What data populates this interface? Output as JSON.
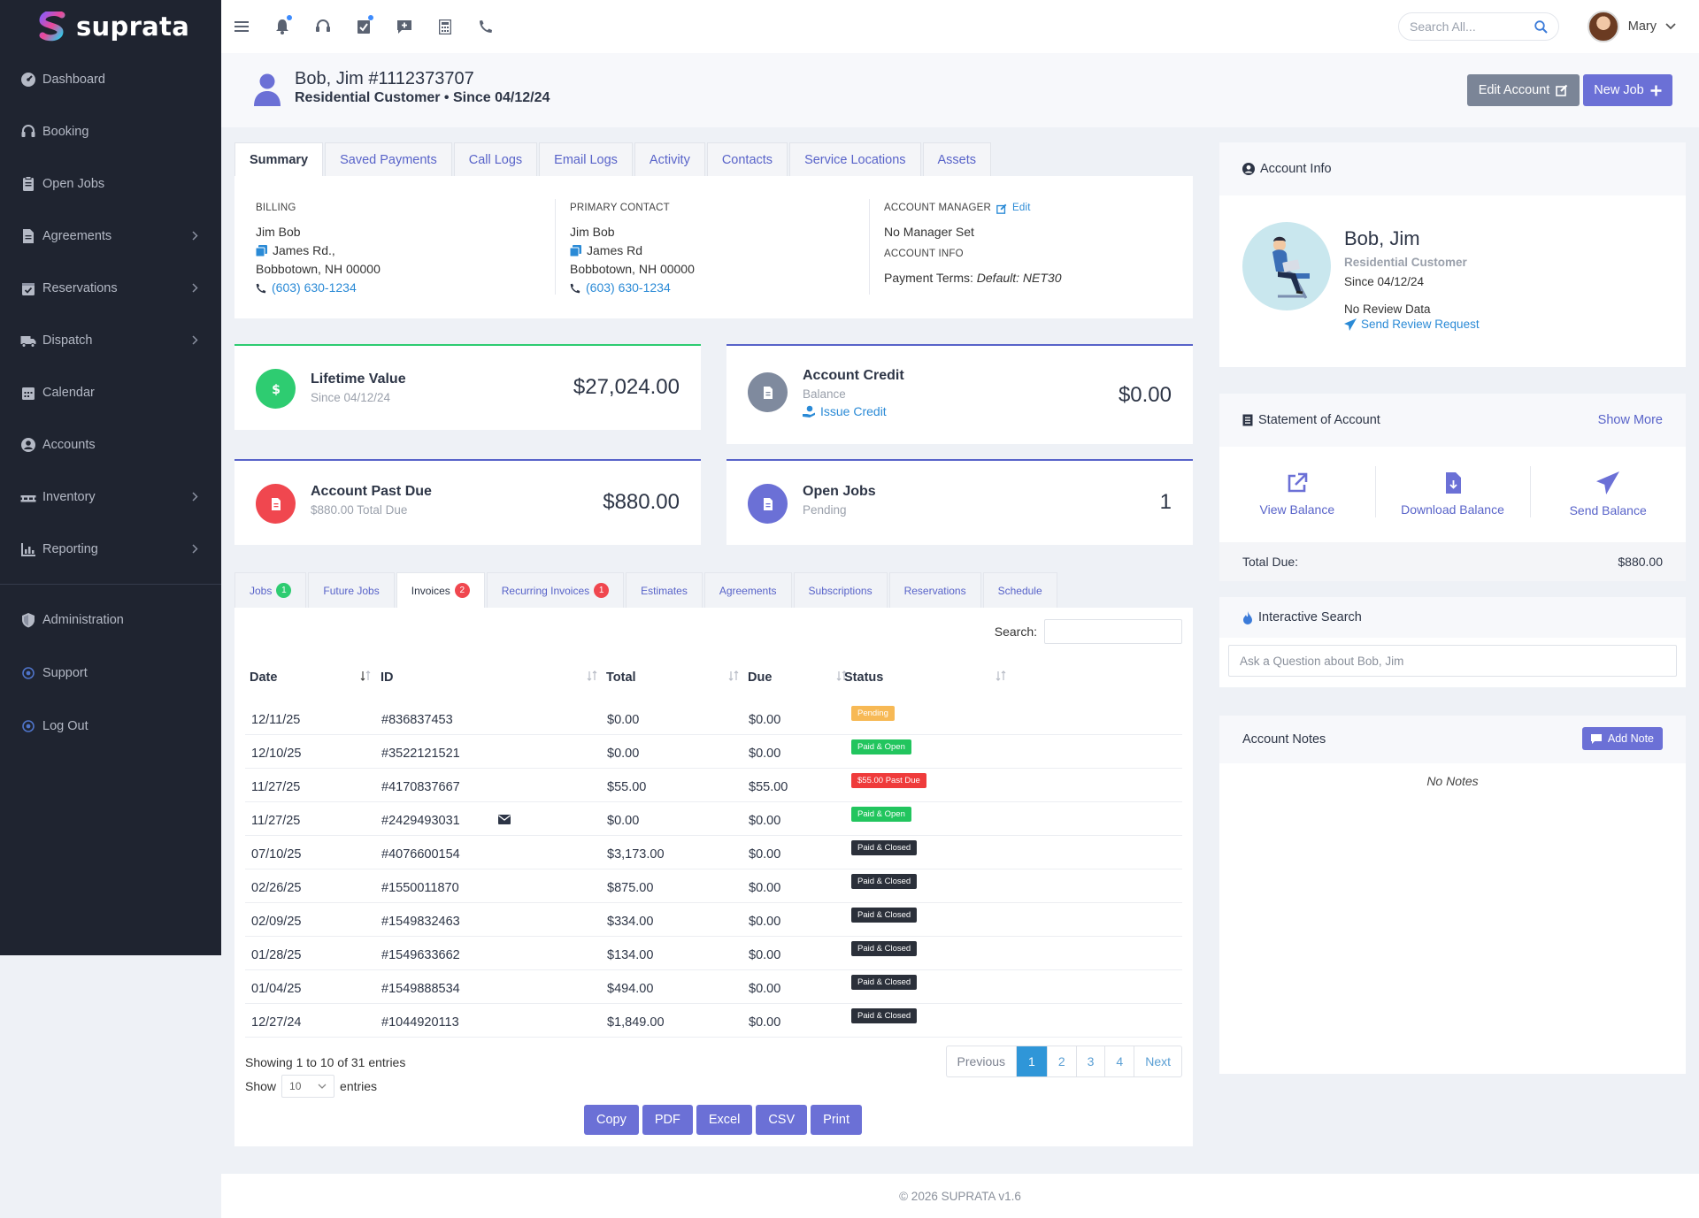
{
  "brand": {
    "name": "suprata"
  },
  "sidebar": {
    "items": [
      {
        "label": "Dashboard",
        "icon": "dashboard-gauge-icon",
        "has_chevron": false
      },
      {
        "label": "Booking",
        "icon": "headset-icon",
        "has_chevron": false
      },
      {
        "label": "Open Jobs",
        "icon": "clipboard-icon",
        "has_chevron": false
      },
      {
        "label": "Agreements",
        "icon": "file-contract-icon",
        "has_chevron": true
      },
      {
        "label": "Reservations",
        "icon": "calendar-check-icon",
        "has_chevron": true
      },
      {
        "label": "Dispatch",
        "icon": "truck-icon",
        "has_chevron": true
      },
      {
        "label": "Calendar",
        "icon": "calendar-icon",
        "has_chevron": false
      },
      {
        "label": "Accounts",
        "icon": "user-circle-icon",
        "has_chevron": false
      },
      {
        "label": "Inventory",
        "icon": "pallet-icon",
        "has_chevron": true
      },
      {
        "label": "Reporting",
        "icon": "chart-icon",
        "has_chevron": true
      }
    ],
    "bottom_items": [
      {
        "label": "Administration",
        "icon": "shield-icon"
      },
      {
        "label": "Support",
        "icon": "support-dot-icon"
      },
      {
        "label": "Log Out",
        "icon": "logout-dot-icon"
      }
    ]
  },
  "topbar": {
    "icons": [
      "menu-icon",
      "bell-icon",
      "headset-icon",
      "tasks-icon",
      "message-plus-icon",
      "calculator-icon",
      "phone-icon"
    ],
    "search_placeholder": "Search All...",
    "user_name": "Mary"
  },
  "header": {
    "title": "Bob, Jim #1112373707",
    "subtitle": "Residential Customer • Since 04/12/24",
    "edit_label": "Edit Account",
    "new_job_label": "New Job"
  },
  "main_tabs": [
    "Summary",
    "Saved Payments",
    "Call Logs",
    "Email Logs",
    "Activity",
    "Contacts",
    "Service Locations",
    "Assets"
  ],
  "summary": {
    "billing": {
      "label": "BILLING",
      "name": "Jim Bob",
      "street": "James Rd.,",
      "city": "Bobbotown, NH 00000",
      "phone": "(603) 630-1234"
    },
    "primary_contact": {
      "label": "PRIMARY CONTACT",
      "name": "Jim Bob",
      "street": "James Rd",
      "city": "Bobbotown, NH 00000",
      "phone": "(603) 630-1234"
    },
    "account_manager": {
      "label": "ACCOUNT MANAGER",
      "edit": "Edit",
      "value": "No Manager Set",
      "info_label": "ACCOUNT INFO",
      "terms_label": "Payment Terms:",
      "terms_value": "Default: NET30"
    }
  },
  "stats": {
    "lifetime": {
      "title": "Lifetime Value",
      "sub": "Since 04/12/24",
      "value": "$27,024.00",
      "color": "#2ecc71"
    },
    "credit": {
      "title": "Account Credit",
      "sub": "Balance",
      "link": "Issue Credit",
      "value": "$0.00",
      "color": "#7f8a9e"
    },
    "past_due": {
      "title": "Account Past Due",
      "sub": "$880.00 Total Due",
      "value": "$880.00",
      "color": "#f0474f"
    },
    "open_jobs": {
      "title": "Open Jobs",
      "sub": "Pending",
      "value": "1",
      "color": "#6b70d6"
    }
  },
  "lower_tabs": [
    {
      "label": "Jobs",
      "badge": "1",
      "badge_color": "#2ecc71"
    },
    {
      "label": "Future Jobs",
      "badge": "",
      "badge_color": ""
    },
    {
      "label": "Invoices",
      "badge": "2",
      "badge_color": "#f0474f"
    },
    {
      "label": "Recurring Invoices",
      "badge": "1",
      "badge_color": "#f0474f"
    },
    {
      "label": "Estimates",
      "badge": "",
      "badge_color": ""
    },
    {
      "label": "Agreements",
      "badge": "",
      "badge_color": ""
    },
    {
      "label": "Subscriptions",
      "badge": "",
      "badge_color": ""
    },
    {
      "label": "Reservations",
      "badge": "",
      "badge_color": ""
    },
    {
      "label": "Schedule",
      "badge": "",
      "badge_color": ""
    }
  ],
  "table": {
    "search_label": "Search:",
    "columns": [
      "Date",
      "ID",
      "Total",
      "Due",
      "Status"
    ],
    "rows": [
      {
        "date": "12/11/25",
        "id": "#836837453",
        "total": "$0.00",
        "due": "$0.00",
        "status": "Pending",
        "status_color": "#f7b955",
        "email": false
      },
      {
        "date": "12/10/25",
        "id": "#3522121521",
        "total": "$0.00",
        "due": "$0.00",
        "status": "Paid & Open",
        "status_color": "#22c55e",
        "email": false
      },
      {
        "date": "11/27/25",
        "id": "#4170837667",
        "total": "$55.00",
        "due": "$55.00",
        "status": "$55.00 Past Due",
        "status_color": "#ef3b3b",
        "email": false
      },
      {
        "date": "11/27/25",
        "id": "#2429493031",
        "total": "$0.00",
        "due": "$0.00",
        "status": "Paid & Open",
        "status_color": "#22c55e",
        "email": true
      },
      {
        "date": "07/10/25",
        "id": "#4076600154",
        "total": "$3,173.00",
        "due": "$0.00",
        "status": "Paid & Closed",
        "status_color": "#2b303a",
        "email": false
      },
      {
        "date": "02/26/25",
        "id": "#1550011870",
        "total": "$875.00",
        "due": "$0.00",
        "status": "Paid & Closed",
        "status_color": "#2b303a",
        "email": false
      },
      {
        "date": "02/09/25",
        "id": "#1549832463",
        "total": "$334.00",
        "due": "$0.00",
        "status": "Paid & Closed",
        "status_color": "#2b303a",
        "email": false
      },
      {
        "date": "01/28/25",
        "id": "#1549633662",
        "total": "$134.00",
        "due": "$0.00",
        "status": "Paid & Closed",
        "status_color": "#2b303a",
        "email": false
      },
      {
        "date": "01/04/25",
        "id": "#1549888534",
        "total": "$494.00",
        "due": "$0.00",
        "status": "Paid & Closed",
        "status_color": "#2b303a",
        "email": false
      },
      {
        "date": "12/27/24",
        "id": "#1044920113",
        "total": "$1,849.00",
        "due": "$0.00",
        "status": "Paid & Closed",
        "status_color": "#2b303a",
        "email": false
      }
    ],
    "showing": "Showing 1 to 10 of 31 entries",
    "show_label": "Show",
    "show_value": "10",
    "entries_label": "entries",
    "pager": [
      "Previous",
      "1",
      "2",
      "3",
      "4",
      "Next"
    ],
    "current_page": "1",
    "exports": [
      "Copy",
      "PDF",
      "Excel",
      "CSV",
      "Print"
    ]
  },
  "account_info": {
    "title": "Account Info",
    "name": "Bob, Jim",
    "type": "Residential Customer",
    "since": "Since 04/12/24",
    "review": "No Review Data",
    "send_review": "Send Review Request"
  },
  "statement": {
    "title": "Statement of Account",
    "show_more": "Show More",
    "actions": [
      {
        "label": "View Balance",
        "icon": "external-link-icon"
      },
      {
        "label": "Download Balance",
        "icon": "file-download-icon"
      },
      {
        "label": "Send Balance",
        "icon": "paper-plane-icon"
      }
    ],
    "total_label": "Total Due:",
    "total_value": "$880.00"
  },
  "interactive_search": {
    "title": "Interactive Search",
    "placeholder": "Ask a Question about Bob, Jim"
  },
  "notes": {
    "title": "Account Notes",
    "add_label": "Add Note",
    "empty": "No Notes"
  },
  "footer": {
    "text": "© 2026 SUPRATA v1.6"
  }
}
